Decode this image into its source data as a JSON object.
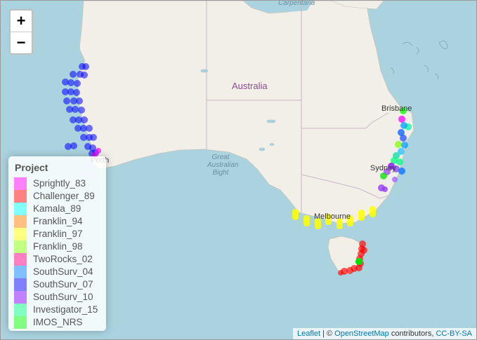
{
  "zoom": {
    "in_label": "+",
    "out_label": "−"
  },
  "labels": {
    "country": "Australia",
    "carpentaria": "Carpentaria",
    "bight_1": "Great",
    "bight_2": "Australian",
    "bight_3": "Bight",
    "brisbane": "Brisbane",
    "sydney": "Sydney",
    "perth": "Perth",
    "melbourne": "Melbourne"
  },
  "legend": {
    "title": "Project",
    "items": [
      {
        "label": "Sprightly_83",
        "color": "#ff80ff"
      },
      {
        "label": "Challenger_89",
        "color": "#ff8080"
      },
      {
        "label": "Kamala_89",
        "color": "#80ffff"
      },
      {
        "label": "Franklin_94",
        "color": "#ffc080"
      },
      {
        "label": "Franklin_97",
        "color": "#ffff80"
      },
      {
        "label": "Franklin_98",
        "color": "#c0ff80"
      },
      {
        "label": "TwoRocks_02",
        "color": "#ff80c0"
      },
      {
        "label": "SouthSurv_04",
        "color": "#80c0ff"
      },
      {
        "label": "SouthSurv_07",
        "color": "#8080ff"
      },
      {
        "label": "SouthSurv_10",
        "color": "#c080ff"
      },
      {
        "label": "Investigator_15",
        "color": "#80ffc0"
      },
      {
        "label": "IMOS_NRS",
        "color": "#80ff80"
      }
    ]
  },
  "attribution": {
    "leaflet": "Leaflet",
    "sep": " | © ",
    "osm": "OpenStreetMap",
    "contrib": " contributors, ",
    "license": "CC-BY-SA"
  }
}
